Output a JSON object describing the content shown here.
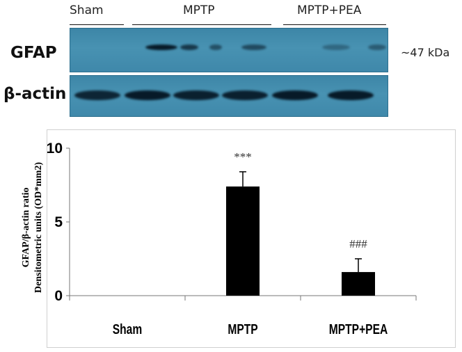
{
  "blot": {
    "groups": [
      "Sham",
      "MPTP",
      "MPTP+PEA"
    ],
    "rows": [
      {
        "label": "GFAP",
        "marker": "~47 kDa"
      },
      {
        "label": "β-actin",
        "marker": ""
      }
    ],
    "band_intensity": {
      "gfap": [
        0,
        0,
        1.0,
        0.75,
        0.55,
        0.6,
        0.0,
        0.35,
        0.45
      ],
      "actin": [
        0.9,
        1.0,
        0.95,
        0.95,
        1.0,
        1.0
      ]
    },
    "colors": {
      "membrane": "#4290b2",
      "band": "#071a28"
    }
  },
  "chart_data": {
    "type": "bar",
    "categories": [
      "Sham",
      "MPTP",
      "MPTP+PEA"
    ],
    "values": [
      0,
      7.4,
      1.6
    ],
    "errors": [
      0,
      1.0,
      0.9
    ],
    "annotations": [
      "",
      "***",
      "###"
    ],
    "title": "",
    "xlabel": "",
    "ylabel": [
      "GFAP/β-actin ratio",
      "Densitometric units (OD*mm2)"
    ],
    "ylim": [
      0,
      10
    ],
    "yticks": [
      0,
      5,
      10
    ],
    "grid": false,
    "bar_color": "#000000"
  }
}
